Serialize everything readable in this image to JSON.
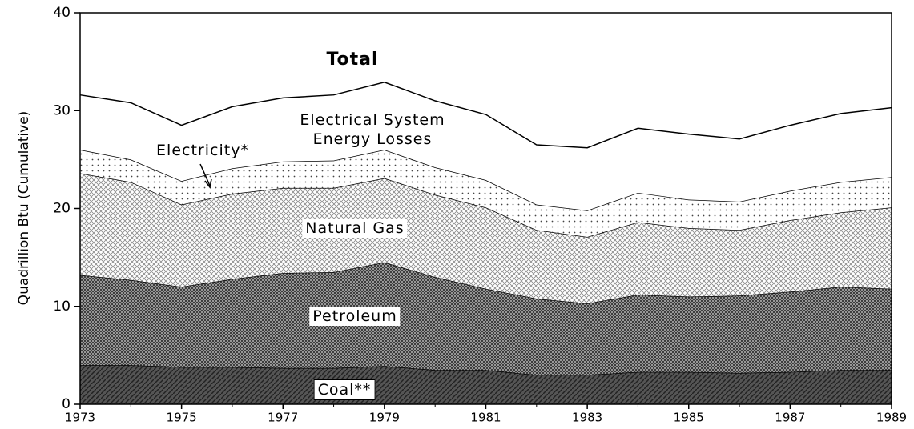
{
  "chart_data": {
    "type": "stacked_area",
    "y_label": "Quadrillion Btu (Cumulative)",
    "x": [
      1973,
      1974,
      1975,
      1976,
      1977,
      1978,
      1979,
      1980,
      1981,
      1982,
      1983,
      1984,
      1985,
      1986,
      1987,
      1988,
      1989
    ],
    "series": [
      {
        "name": "Coal**",
        "color": "#4a4a4a",
        "values": [
          4.0,
          4.0,
          3.8,
          3.8,
          3.7,
          3.7,
          3.9,
          3.5,
          3.5,
          3.0,
          3.0,
          3.3,
          3.3,
          3.2,
          3.3,
          3.5,
          3.5
        ]
      },
      {
        "name": "Petroleum",
        "color": "#7a7a7a",
        "values": [
          9.2,
          8.7,
          8.2,
          9.0,
          9.7,
          9.8,
          10.6,
          9.5,
          8.3,
          7.8,
          7.3,
          7.9,
          7.7,
          7.9,
          8.2,
          8.5,
          8.3
        ]
      },
      {
        "name": "Natural Gas",
        "color": "#c4c4c4",
        "values": [
          10.4,
          10.0,
          8.4,
          8.7,
          8.7,
          8.6,
          8.6,
          8.4,
          8.3,
          7.0,
          6.8,
          7.4,
          7.0,
          6.7,
          7.3,
          7.6,
          8.3
        ]
      },
      {
        "name": "Electricity*",
        "color": "#ececec",
        "values": [
          2.4,
          2.3,
          2.4,
          2.6,
          2.7,
          2.8,
          2.9,
          2.8,
          2.8,
          2.6,
          2.7,
          3.0,
          2.9,
          2.9,
          3.0,
          3.1,
          3.1
        ]
      },
      {
        "name": "Electrical System Energy Losses",
        "color": "#ffffff",
        "values": [
          5.6,
          5.8,
          5.7,
          6.3,
          6.5,
          6.7,
          6.9,
          6.8,
          6.7,
          6.1,
          6.4,
          6.6,
          6.7,
          6.4,
          6.7,
          7.0,
          7.1
        ]
      }
    ],
    "annotation": "Total",
    "xlim": [
      1973,
      1989
    ],
    "xticks": [
      1973,
      1975,
      1977,
      1979,
      1981,
      1983,
      1985,
      1987,
      1989
    ],
    "ylim": [
      0,
      40
    ],
    "yticks": [
      0,
      10,
      20,
      30,
      40
    ],
    "grid": false
  }
}
